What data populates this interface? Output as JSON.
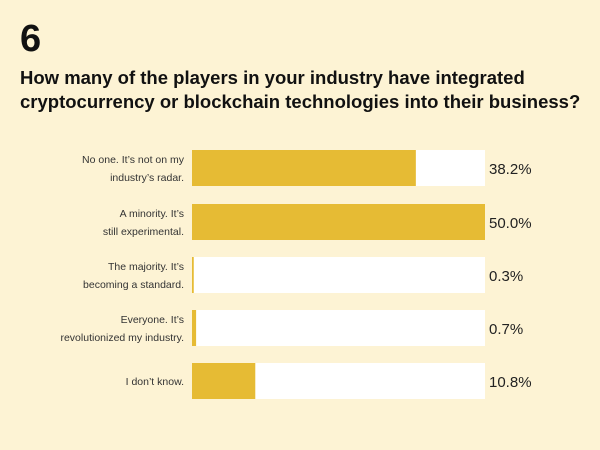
{
  "chart_data": {
    "type": "bar",
    "orientation": "horizontal",
    "number": "6",
    "title": "How many of the players in your industry have integrated cryptocurrency or blockchain technologies into their business?",
    "categories": [
      [
        "No one. It’s not on my",
        "industry’s radar."
      ],
      [
        "A minority. It’s",
        "still experimental."
      ],
      [
        "The majority. It’s",
        "becoming a standard."
      ],
      [
        "Everyone. It’s",
        "revolutionized my industry."
      ],
      [
        "I don’t know."
      ]
    ],
    "values": [
      38.2,
      50.0,
      0.3,
      0.7,
      10.8
    ],
    "value_labels": [
      "38.2%",
      "50.0%",
      "0.3%",
      "0.7%",
      "10.8%"
    ],
    "xlim": [
      0,
      50
    ],
    "colors": {
      "bar": "#e6bb34",
      "track": "#ffffff",
      "background": "#fdf3d4"
    }
  }
}
